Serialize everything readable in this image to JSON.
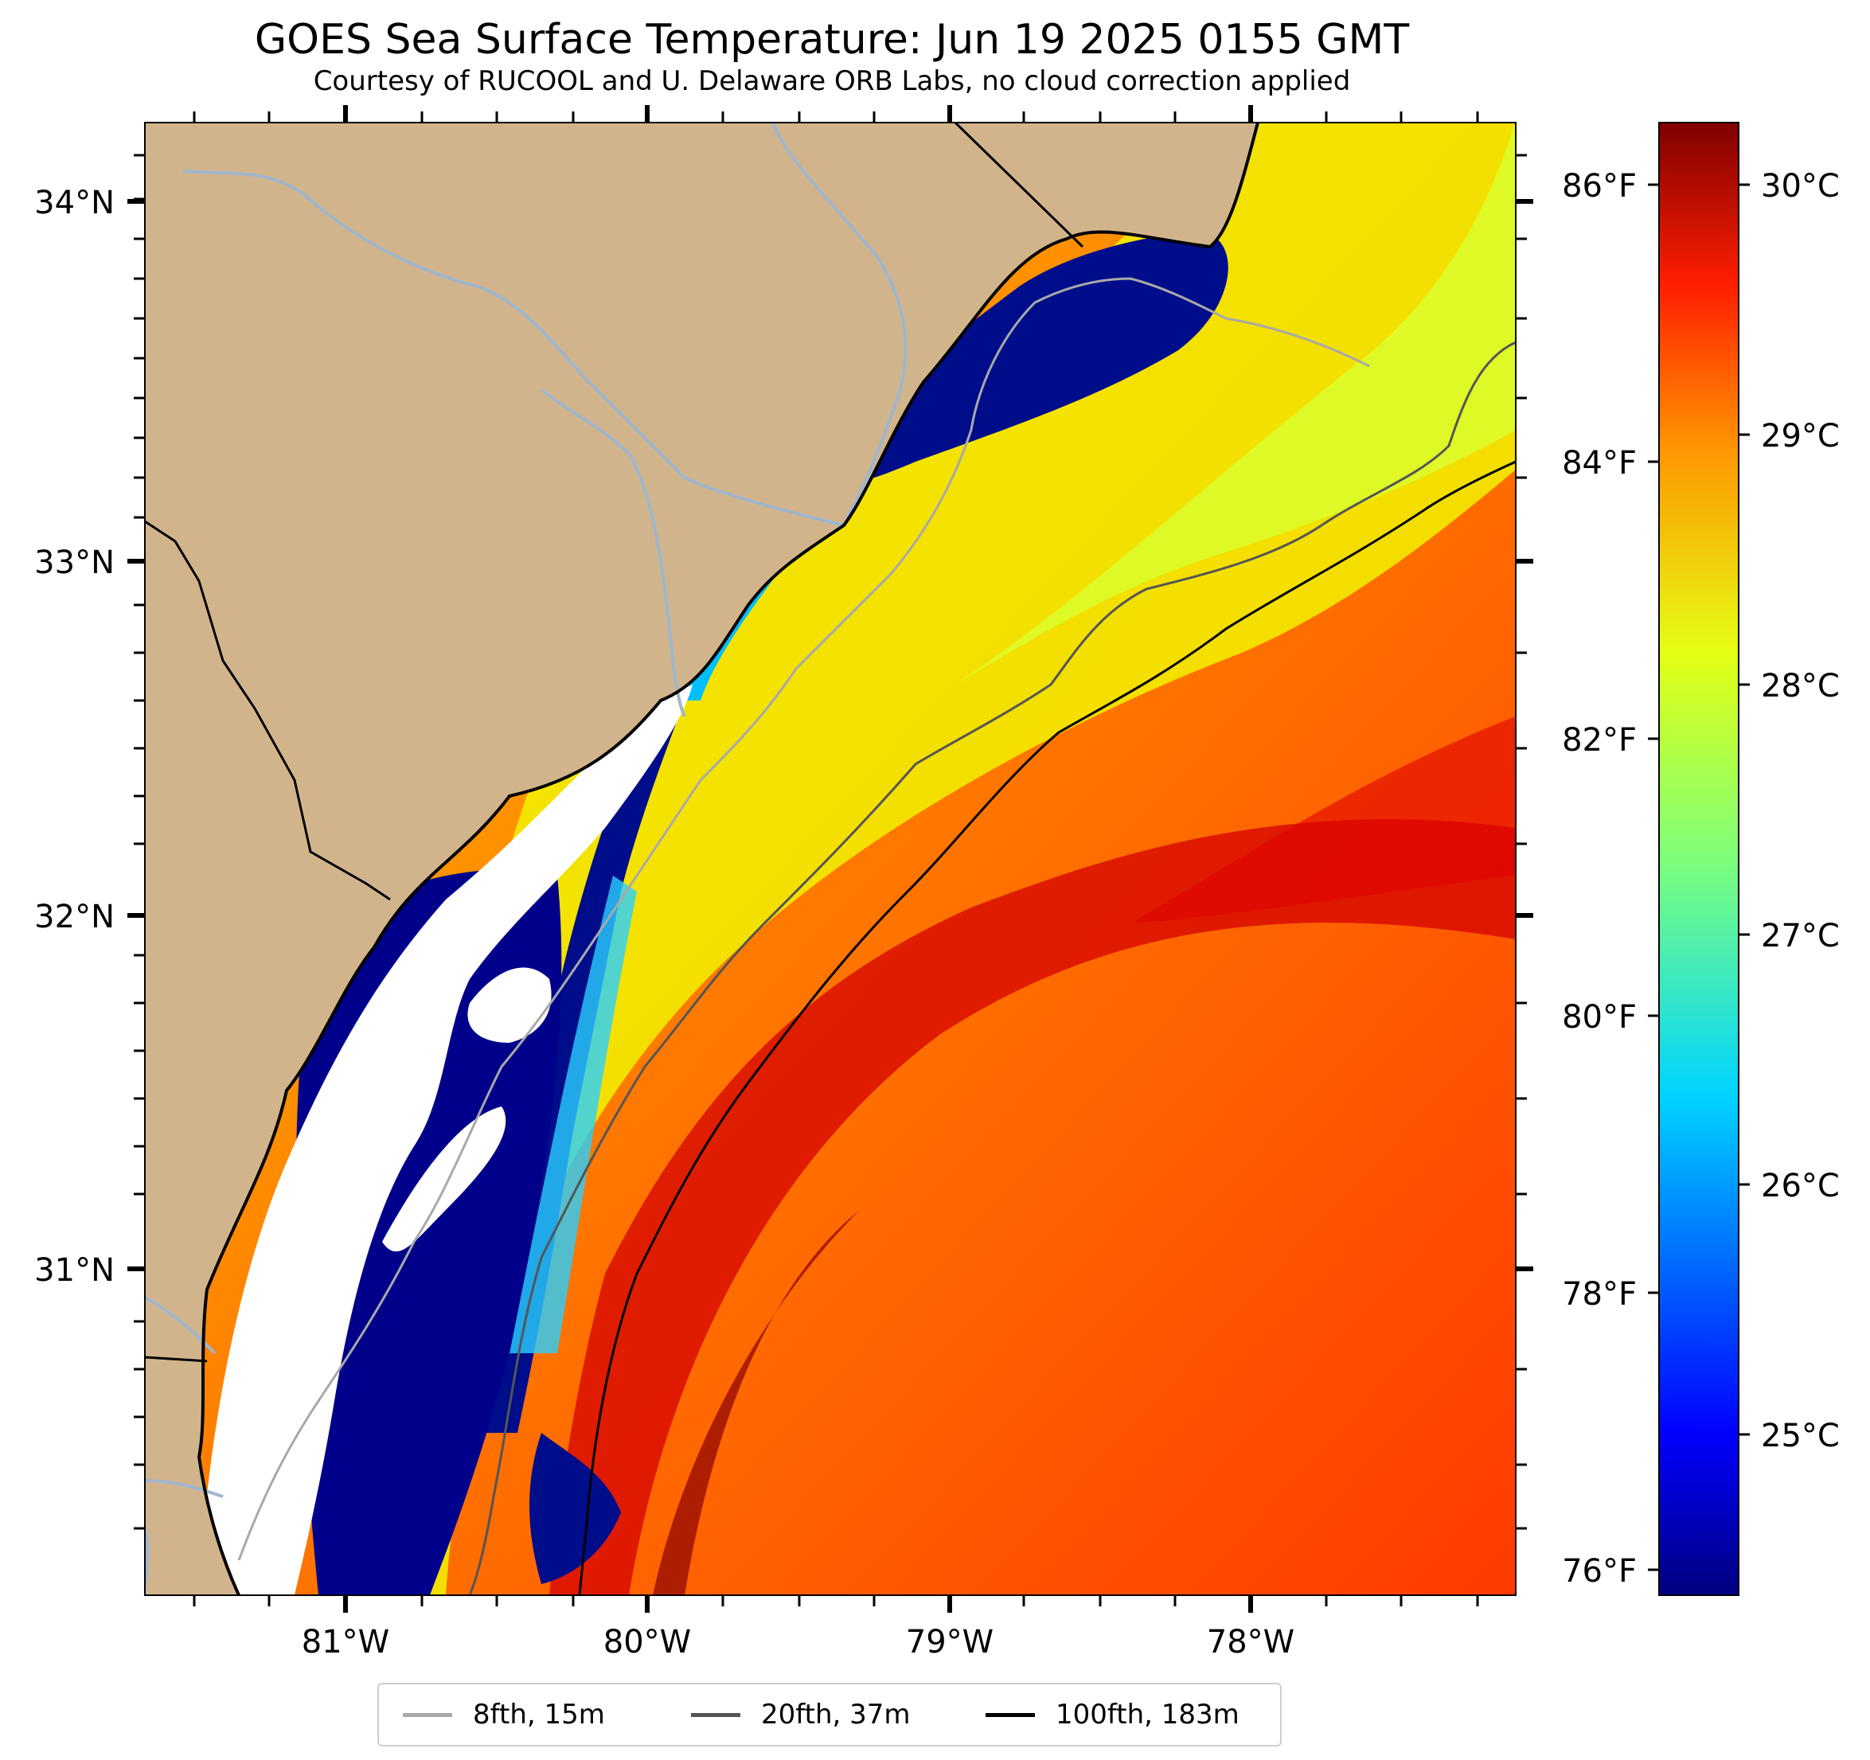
{
  "title": "GOES Sea Surface Temperature: Jun 19 2025 0155 GMT",
  "subtitle": "Courtesy of RUCOOL and U. Delaware ORB Labs, no cloud correction applied",
  "colors": {
    "land": "#d2b48c",
    "no_data": "#ffffff",
    "rivers": "#9fb6cd",
    "coastline": "#000000"
  },
  "map": {
    "lat_ticks": [
      "34°N",
      "33°N",
      "32°N",
      "31°N"
    ],
    "lon_ticks": [
      "81°W",
      "80°W",
      "79°W",
      "78°W"
    ]
  },
  "colorbar": {
    "colormap": "jet",
    "celsius_ticks": [
      "30°C",
      "29°C",
      "28°C",
      "27°C",
      "26°C",
      "25°C"
    ],
    "fahrenheit_ticks": [
      "86°F",
      "84°F",
      "82°F",
      "80°F",
      "78°F",
      "76°F"
    ]
  },
  "legend": {
    "items": [
      {
        "label": "8fth, 15m",
        "color": "#a9a9a9"
      },
      {
        "label": "20fth, 37m",
        "color": "#555555"
      },
      {
        "label": "100fth, 183m",
        "color": "#000000"
      }
    ]
  }
}
